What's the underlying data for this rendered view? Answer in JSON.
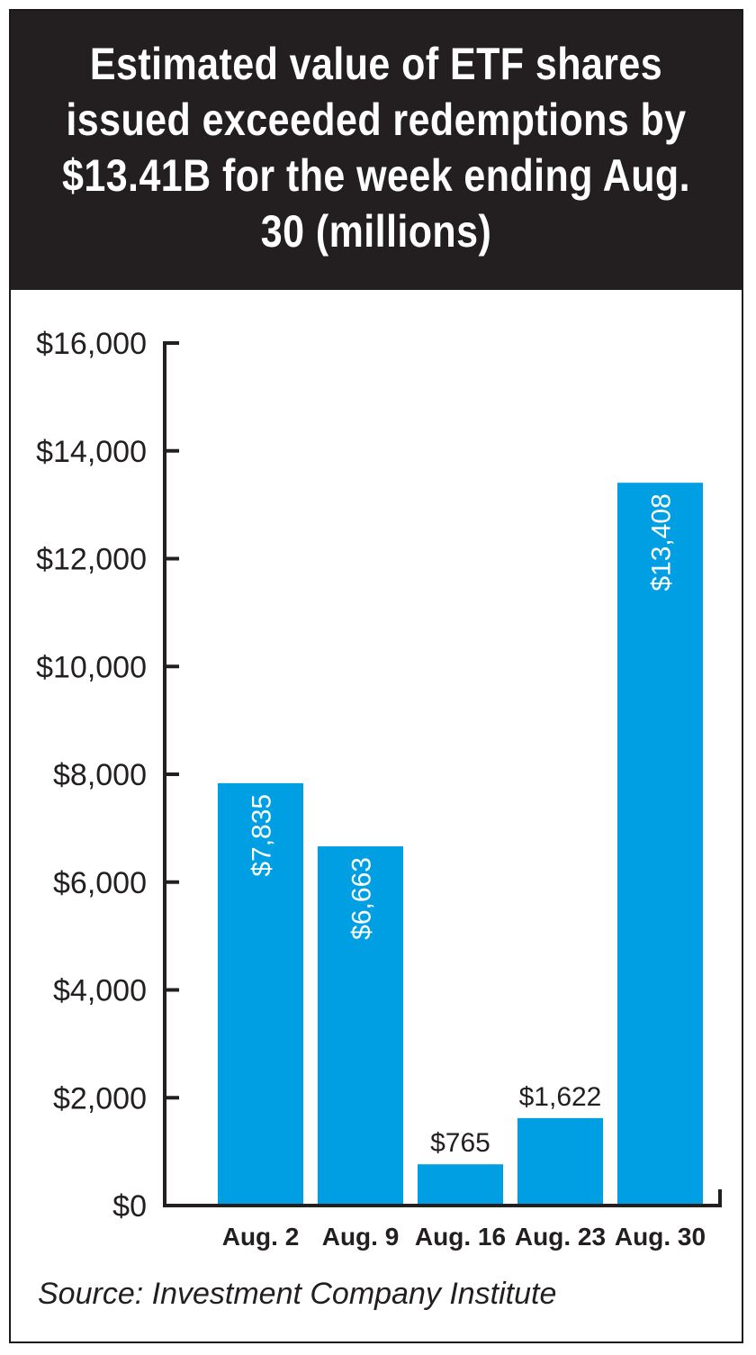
{
  "chart_data": {
    "type": "bar",
    "title": "Estimated value of ETF shares issued exceeded redemptions by $13.41B for the week ending Aug. 30  (millions)",
    "categories": [
      "Aug. 2",
      "Aug. 9",
      "Aug. 16",
      "Aug. 23",
      "Aug. 30"
    ],
    "values": [
      7835,
      6663,
      765,
      1622,
      13408
    ],
    "value_labels": [
      "$7,835",
      "$6,663",
      "$765",
      "$1,622",
      "$13,408"
    ],
    "yticks": [
      0,
      2000,
      4000,
      6000,
      8000,
      10000,
      12000,
      14000,
      16000
    ],
    "ytick_labels": [
      "$0",
      "$2,000",
      "$4,000",
      "$6,000",
      "$8,000",
      "$10,000",
      "$12,000",
      "$14,000",
      "$16,000"
    ],
    "ylim": [
      0,
      16000
    ],
    "xlabel": "",
    "ylabel": "",
    "grid": false,
    "bar_color": "#009fe3"
  },
  "source": "Source: Investment Company Institute"
}
